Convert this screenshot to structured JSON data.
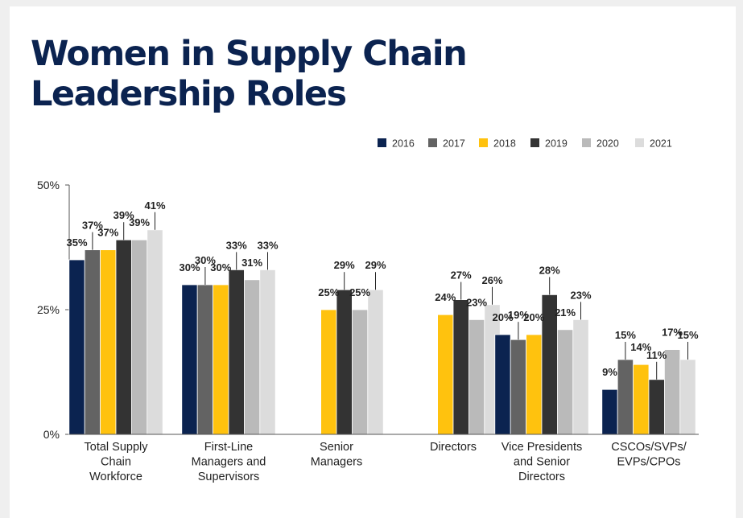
{
  "chart_data": {
    "type": "bar",
    "title_lines": [
      "Women in Supply Chain",
      "Leadership Roles"
    ],
    "categories": [
      [
        "Total Supply",
        "Chain",
        "Workforce"
      ],
      [
        "First-Line",
        "Managers and",
        "Supervisors"
      ],
      [
        "Senior",
        "Managers"
      ],
      [
        "Directors"
      ],
      [
        "Vice Presidents",
        "and Senior",
        "Directors"
      ],
      [
        "CSCOs/SVPs/",
        "EVPs/CPOs"
      ]
    ],
    "series": [
      {
        "name": "2016",
        "color": "#0b2350",
        "values": [
          35,
          30,
          null,
          null,
          20,
          9
        ]
      },
      {
        "name": "2017",
        "color": "#636363",
        "values": [
          37,
          30,
          null,
          null,
          19,
          15
        ]
      },
      {
        "name": "2018",
        "color": "#ffc20e",
        "values": [
          37,
          30,
          25,
          24,
          20,
          14
        ]
      },
      {
        "name": "2019",
        "color": "#333333",
        "values": [
          39,
          33,
          29,
          27,
          28,
          11
        ]
      },
      {
        "name": "2020",
        "color": "#bababa",
        "values": [
          39,
          31,
          25,
          23,
          21,
          17
        ]
      },
      {
        "name": "2021",
        "color": "#dcdcdc",
        "values": [
          41,
          33,
          29,
          26,
          23,
          15
        ]
      }
    ],
    "y_ticks": [
      "0%",
      "25%",
      "50%"
    ],
    "ylim": [
      0,
      50
    ],
    "value_suffix": "%",
    "legend_position": "top-right",
    "grid": false
  }
}
